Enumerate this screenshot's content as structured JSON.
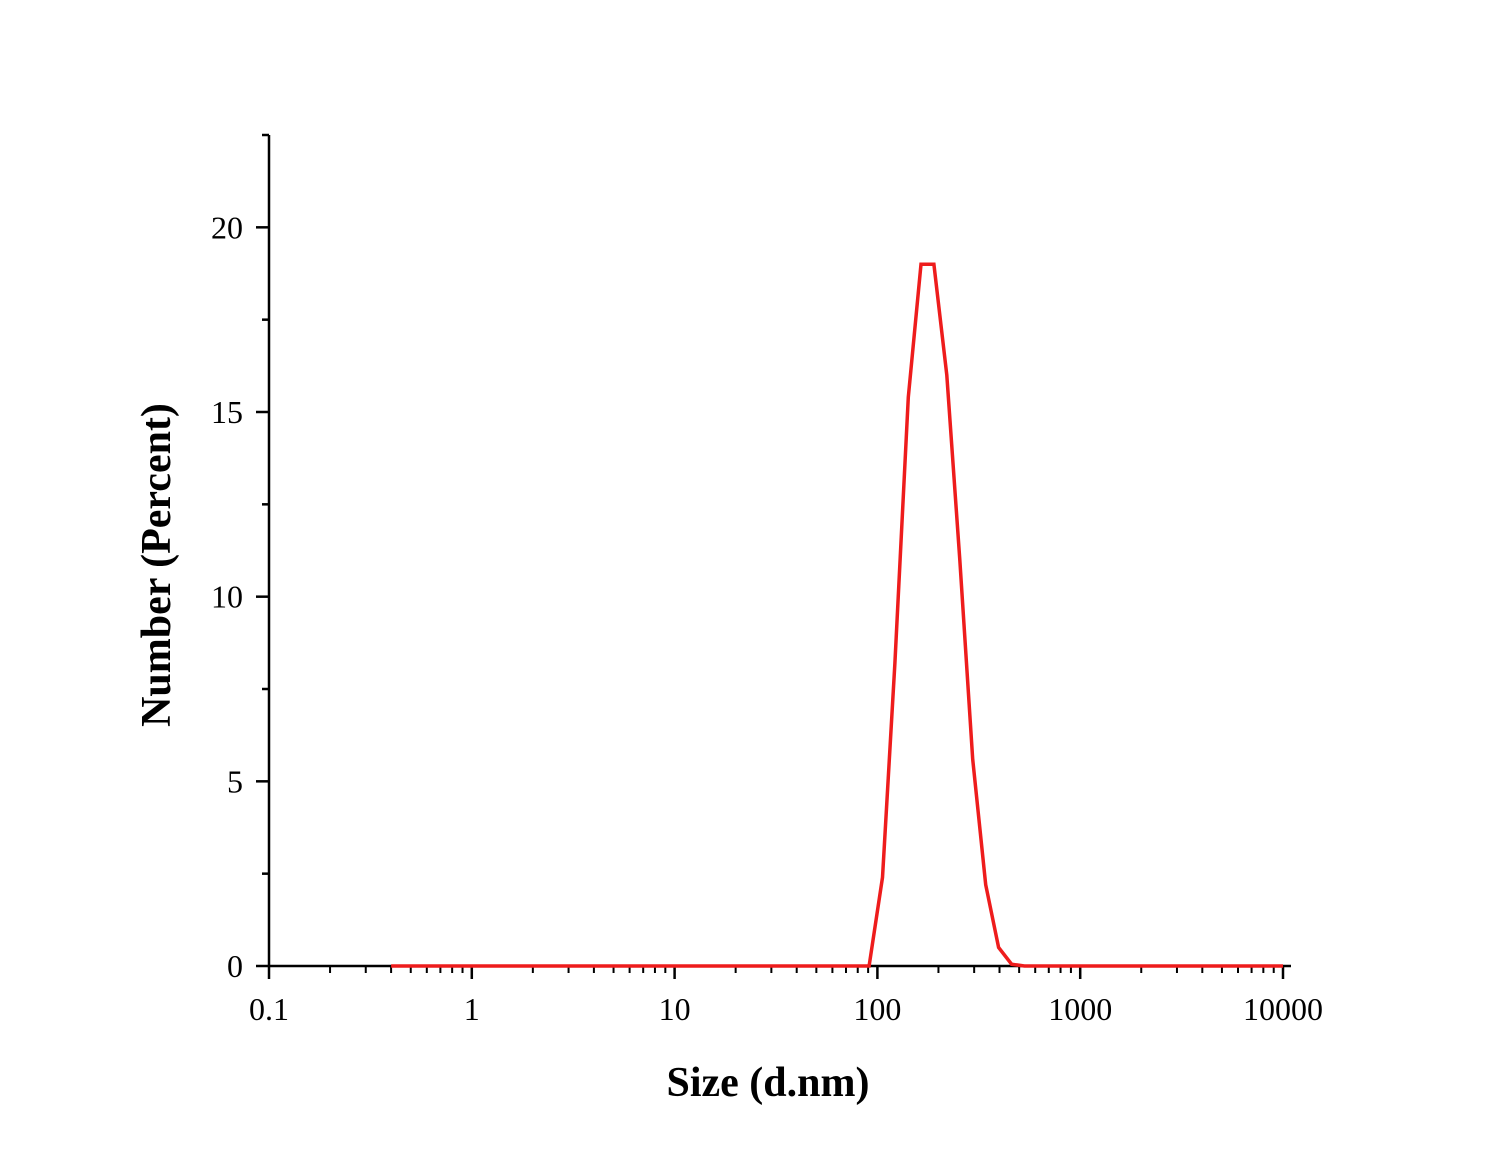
{
  "chart_data": {
    "type": "line",
    "title": "",
    "xlabel": "Size (d.nm)",
    "ylabel": "Number (Percent)",
    "x_scale": "log",
    "xlim": [
      0.1,
      10000
    ],
    "ylim": [
      0,
      22.5
    ],
    "x_ticks": [
      0.1,
      1,
      10,
      100,
      1000,
      10000
    ],
    "x_tick_labels": [
      "0.1",
      "1",
      "10",
      "100",
      "1000",
      "10000"
    ],
    "y_ticks": [
      0,
      5,
      10,
      15,
      20
    ],
    "y_tick_labels": [
      "0",
      "5",
      "10",
      "15",
      "20"
    ],
    "y_minor_ticks": [
      2.5,
      7.5,
      12.5,
      17.5,
      22.5
    ],
    "grid": false,
    "line_color": "#ee1c1c",
    "series": [
      {
        "x": [
          0.4,
          0.6,
          1,
          2,
          5,
          10,
          20,
          50,
          80,
          91,
          106,
          122,
          142,
          164,
          190,
          220,
          255,
          295,
          342,
          396,
          459,
          531,
          615,
          712,
          1000,
          2000,
          5000,
          10000
        ],
        "values": [
          0,
          0,
          0,
          0,
          0,
          0,
          0,
          0,
          0,
          0,
          2.4,
          8.2,
          15.4,
          19.0,
          19.0,
          16.0,
          11.0,
          5.6,
          2.2,
          0.5,
          0.05,
          0,
          0,
          0,
          0,
          0,
          0,
          0
        ]
      }
    ]
  }
}
